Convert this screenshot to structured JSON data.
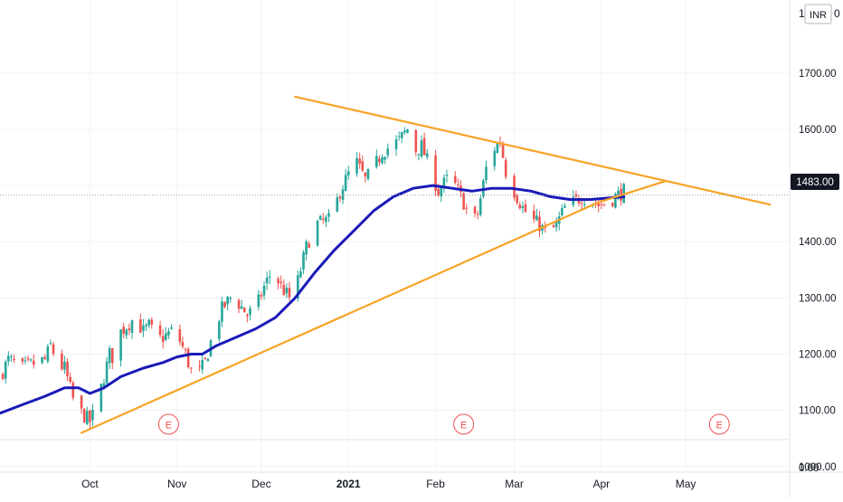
{
  "price_scale": {
    "currency_label": "INR",
    "top_partial_label": "1",
    "secondary_top_label": "0",
    "current_price_label": "1483.00",
    "bottom_pane_label": "0.00"
  },
  "colors": {
    "candle_up": "#26a69a",
    "candle_down": "#ef5350",
    "moving_average": "#1a1ab8",
    "trendlines": "#f7a325",
    "earnings_marker": "#ef5350",
    "price_line": "#9e9e9e"
  },
  "earnings_markers": [
    {
      "label": "E",
      "date": "2020-10-29"
    },
    {
      "label": "E",
      "date": "2021-02-11"
    },
    {
      "label": "E",
      "date": "2021-05-13"
    }
  ],
  "chart_data": {
    "type": "line",
    "title": "",
    "xlabel": "",
    "ylabel": "",
    "x_range": [
      "2020-08-30",
      "2021-06-07"
    ],
    "ylim": [
      990,
      1830
    ],
    "y_ticks": [
      1000,
      1100,
      1200,
      1300,
      1400,
      1500,
      1600,
      1700
    ],
    "y_tick_labels": [
      "1000.00",
      "1100.00",
      "1200.00",
      "1300.00",
      "1400.00",
      "1500.00",
      "1600.00",
      "1700.00"
    ],
    "x_ticks": [
      "2020-10-01",
      "2020-11-01",
      "2020-12-01",
      "2021-01-01",
      "2021-02-01",
      "2021-03-01",
      "2021-04-01",
      "2021-05-01"
    ],
    "x_tick_labels": [
      "Oct",
      "Nov",
      "Dec",
      "2021",
      "Feb",
      "Mar",
      "Apr",
      "May"
    ],
    "grid": true,
    "last_price": 1483,
    "series": [
      {
        "kind": "candlestick",
        "points": [
          [
            "2020-08-30",
            1160
          ],
          [
            "2020-09-02",
            1190
          ],
          [
            "2020-09-07",
            1175
          ],
          [
            "2020-09-12",
            1185
          ],
          [
            "2020-09-15",
            1190
          ],
          [
            "2020-09-17",
            1215
          ],
          [
            "2020-09-20",
            1180
          ],
          [
            "2020-09-22",
            1175
          ],
          [
            "2020-09-25",
            1120
          ],
          [
            "2020-09-27",
            1100
          ],
          [
            "2020-10-01",
            1080
          ],
          [
            "2020-10-03",
            1100
          ],
          [
            "2020-10-06",
            1160
          ],
          [
            "2020-10-08",
            1200
          ],
          [
            "2020-10-10",
            1190
          ],
          [
            "2020-10-12",
            1240
          ],
          [
            "2020-10-15",
            1255
          ],
          [
            "2020-10-17",
            1265
          ],
          [
            "2020-10-20",
            1240
          ],
          [
            "2020-10-22",
            1250
          ],
          [
            "2020-10-25",
            1225
          ],
          [
            "2020-10-27",
            1230
          ],
          [
            "2020-10-30",
            1240
          ],
          [
            "2020-11-01",
            1235
          ],
          [
            "2020-11-04",
            1200
          ],
          [
            "2020-11-06",
            1170
          ],
          [
            "2020-11-08",
            1160
          ],
          [
            "2020-11-11",
            1185
          ],
          [
            "2020-11-14",
            1240
          ],
          [
            "2020-11-17",
            1280
          ],
          [
            "2020-11-20",
            1300
          ],
          [
            "2020-11-23",
            1290
          ],
          [
            "2020-11-26",
            1270
          ],
          [
            "2020-11-29",
            1280
          ],
          [
            "2020-12-02",
            1320
          ],
          [
            "2020-12-05",
            1350
          ],
          [
            "2020-12-08",
            1320
          ],
          [
            "2020-12-11",
            1300
          ],
          [
            "2020-12-14",
            1330
          ],
          [
            "2020-12-17",
            1390
          ],
          [
            "2020-12-20",
            1430
          ],
          [
            "2020-12-23",
            1435
          ],
          [
            "2020-12-26",
            1440
          ],
          [
            "2020-12-29",
            1490
          ],
          [
            "2021-01-01",
            1520
          ],
          [
            "2021-01-04",
            1540
          ],
          [
            "2021-01-07",
            1510
          ],
          [
            "2021-01-10",
            1530
          ],
          [
            "2021-01-13",
            1560
          ],
          [
            "2021-01-16",
            1570
          ],
          [
            "2021-01-19",
            1580
          ],
          [
            "2021-01-22",
            1600
          ],
          [
            "2021-01-24",
            1560
          ],
          [
            "2021-01-27",
            1570
          ],
          [
            "2021-01-30",
            1530
          ],
          [
            "2021-02-02",
            1490
          ],
          [
            "2021-02-05",
            1510
          ],
          [
            "2021-02-08",
            1500
          ],
          [
            "2021-02-11",
            1470
          ],
          [
            "2021-02-14",
            1430
          ],
          [
            "2021-02-16",
            1450
          ],
          [
            "2021-02-19",
            1530
          ],
          [
            "2021-02-21",
            1560
          ],
          [
            "2021-02-24",
            1580
          ],
          [
            "2021-02-26",
            1525
          ],
          [
            "2021-03-01",
            1490
          ],
          [
            "2021-03-04",
            1460
          ],
          [
            "2021-03-07",
            1440
          ],
          [
            "2021-03-10",
            1430
          ],
          [
            "2021-03-13",
            1410
          ],
          [
            "2021-03-16",
            1430
          ],
          [
            "2021-03-19",
            1460
          ],
          [
            "2021-03-22",
            1470
          ],
          [
            "2021-03-25",
            1480
          ],
          [
            "2021-03-28",
            1475
          ],
          [
            "2021-03-31",
            1465
          ],
          [
            "2021-04-03",
            1470
          ],
          [
            "2021-04-06",
            1480
          ],
          [
            "2021-04-09",
            1490
          ]
        ]
      },
      {
        "kind": "moving-average",
        "points": [
          [
            "2020-08-30",
            1095
          ],
          [
            "2020-09-07",
            1110
          ],
          [
            "2020-09-15",
            1125
          ],
          [
            "2020-09-22",
            1140
          ],
          [
            "2020-09-27",
            1140
          ],
          [
            "2020-10-01",
            1130
          ],
          [
            "2020-10-06",
            1140
          ],
          [
            "2020-10-12",
            1160
          ],
          [
            "2020-10-20",
            1175
          ],
          [
            "2020-10-27",
            1185
          ],
          [
            "2020-11-01",
            1195
          ],
          [
            "2020-11-06",
            1200
          ],
          [
            "2020-11-10",
            1200
          ],
          [
            "2020-11-15",
            1215
          ],
          [
            "2020-11-22",
            1230
          ],
          [
            "2020-11-29",
            1245
          ],
          [
            "2020-12-06",
            1265
          ],
          [
            "2020-12-13",
            1300
          ],
          [
            "2020-12-20",
            1345
          ],
          [
            "2020-12-27",
            1385
          ],
          [
            "2021-01-03",
            1420
          ],
          [
            "2021-01-10",
            1455
          ],
          [
            "2021-01-17",
            1480
          ],
          [
            "2021-01-24",
            1495
          ],
          [
            "2021-01-31",
            1500
          ],
          [
            "2021-02-07",
            1495
          ],
          [
            "2021-02-14",
            1490
          ],
          [
            "2021-02-21",
            1495
          ],
          [
            "2021-02-28",
            1495
          ],
          [
            "2021-03-07",
            1490
          ],
          [
            "2021-03-14",
            1480
          ],
          [
            "2021-03-21",
            1475
          ],
          [
            "2021-03-28",
            1475
          ],
          [
            "2021-04-04",
            1478
          ],
          [
            "2021-04-09",
            1480
          ]
        ]
      },
      {
        "kind": "trendline",
        "points": [
          [
            "2020-09-28",
            1060
          ],
          [
            "2021-03-31",
            1470
          ],
          [
            "2021-04-24",
            1508
          ]
        ]
      },
      {
        "kind": "trendline",
        "points": [
          [
            "2020-12-13",
            1658
          ],
          [
            "2021-05-31",
            1466
          ]
        ]
      }
    ]
  }
}
